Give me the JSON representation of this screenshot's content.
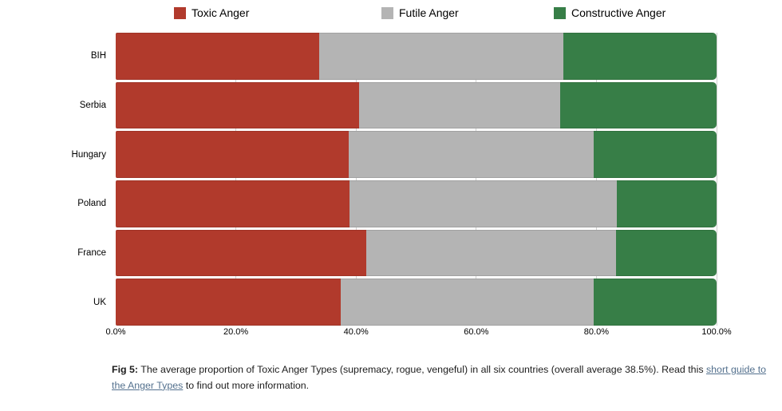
{
  "page": {
    "background": "#ffffff"
  },
  "chart_data": {
    "type": "bar",
    "orientation": "horizontal",
    "stacked": true,
    "unit": "%",
    "title": "",
    "xlabel": "",
    "ylabel": "",
    "xlim": [
      0,
      100
    ],
    "legend_position": "top",
    "grid": true,
    "gridlines_at": [
      20,
      40,
      60,
      80,
      100
    ],
    "categories": [
      "BIH",
      "Serbia",
      "Hungary",
      "Poland",
      "France",
      "UK"
    ],
    "series": [
      {
        "name": "Toxic Anger",
        "color": "#b13a2c",
        "values": [
          33.8,
          40.5,
          38.8,
          38.9,
          41.7,
          37.5
        ]
      },
      {
        "name": "Futile Anger",
        "color": "#b4b4b4",
        "values": [
          40.7,
          33.5,
          40.7,
          44.5,
          41.6,
          42.0
        ]
      },
      {
        "name": "Constructive Anger",
        "color": "#377e47",
        "values": [
          25.5,
          26.0,
          20.5,
          16.6,
          16.7,
          20.5
        ]
      }
    ],
    "x_ticks": [
      {
        "value": 0,
        "label": "0.0%"
      },
      {
        "value": 20,
        "label": "20.0%"
      },
      {
        "value": 40,
        "label": "40.0%"
      },
      {
        "value": 60,
        "label": "60.0%"
      },
      {
        "value": 80,
        "label": "80.0%"
      },
      {
        "value": 100,
        "label": "100.0%"
      }
    ]
  },
  "caption": {
    "fig_label": "Fig 5:",
    "text_before_link": " The average proportion of Toxic Anger Types (supremacy, rogue, vengeful) in all six countries (overall average 38.5%). Read this ",
    "link_text": "short guide to the Anger Types",
    "text_after_link": " to find out more information."
  }
}
